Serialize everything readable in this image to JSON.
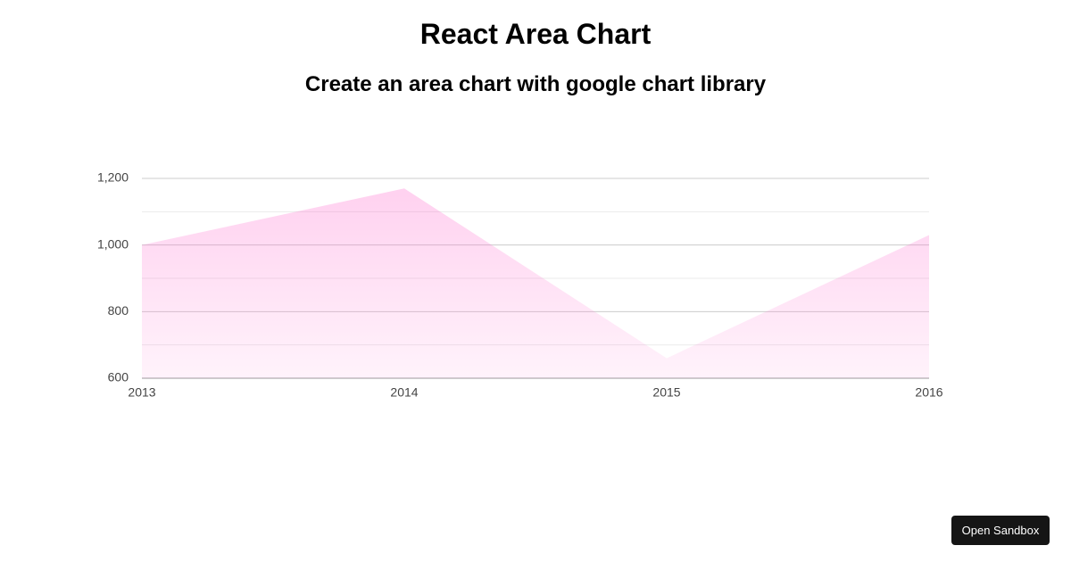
{
  "chart_data": {
    "type": "area",
    "title": "React Area Chart",
    "subtitle": "Create an area chart with google chart library",
    "categories": [
      "2013",
      "2014",
      "2015",
      "2016"
    ],
    "values": [
      1000,
      1170,
      660,
      1030
    ],
    "color": "#ff66cc",
    "ylim": [
      600,
      1200
    ],
    "yticks": [
      600,
      800,
      {
        "value": 1000,
        "label": "1,000"
      },
      {
        "value": 1200,
        "label": "1,200"
      }
    ],
    "minor_yticks": [
      700,
      900,
      1100
    ],
    "grid": true
  },
  "button": "Open Sandbox"
}
